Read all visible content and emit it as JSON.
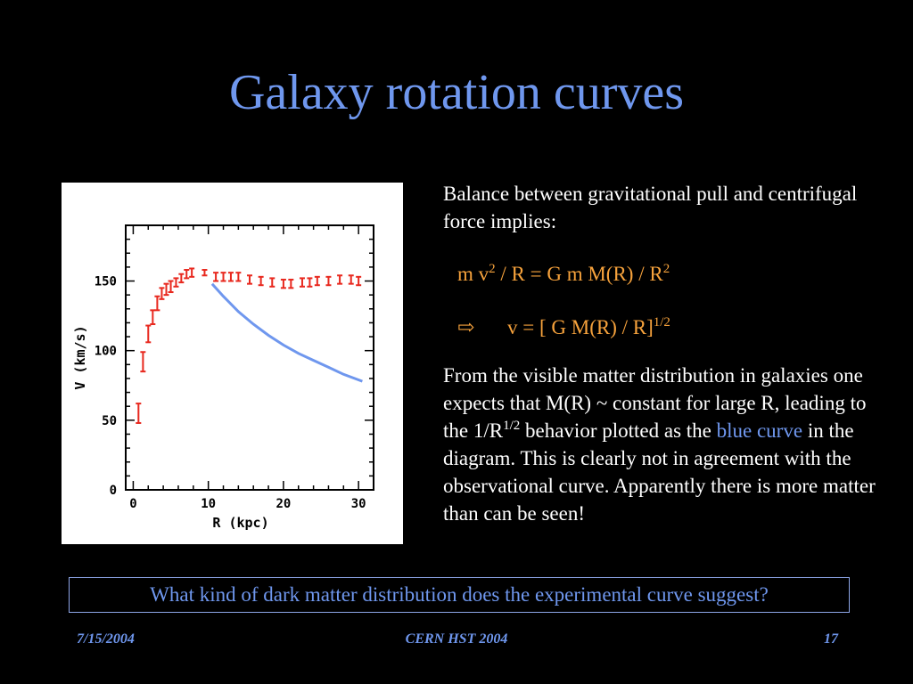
{
  "slide": {
    "title": "Galaxy rotation curves",
    "paragraph1": "Balance between gravitational pull and centrifugal force implies:",
    "eq1": {
      "lhs": "m v",
      "lhs_sup": "2",
      "rest": " / R = G m M(R) / R",
      "rest_sup": "2"
    },
    "eq2": {
      "arrow": "⇨",
      "text": "v = [ G M(R)  / R]",
      "sup": "1/2"
    },
    "paragraph2": {
      "part1": "From the visible matter distribution in galaxies one expects that M(R) ~ constant for large R, leading to the 1/R",
      "sup": "1/2",
      "part2": " behavior plotted as the ",
      "highlight": "blue curve",
      "part3": " in the diagram. This is clearly not in agreement with the observational curve. Apparently there is more matter than can be seen!"
    },
    "question": "What kind of dark matter distribution does the experimental curve suggest?",
    "footer": {
      "date": "7/15/2004",
      "center": "CERN HST 2004",
      "page": "17"
    }
  },
  "colors": {
    "background": "#000000",
    "title": "#6f97ee",
    "equation": "#f6a23c",
    "data_points": "#e8281e",
    "model_curve": "#6f97ee"
  },
  "chart_data": {
    "type": "scatter",
    "xlabel": "R (kpc)",
    "ylabel": "V (km/s)",
    "xlim": [
      -1,
      32
    ],
    "ylim": [
      0,
      190
    ],
    "x_ticks": [
      0,
      10,
      20,
      30
    ],
    "y_ticks": [
      0,
      50,
      100,
      150
    ],
    "series": [
      {
        "kind": "errorbar",
        "x": [
          0.7,
          1.3,
          2.0,
          2.6,
          3.2,
          3.8,
          4.4,
          5.0,
          5.7,
          6.4,
          7.1,
          7.8,
          9.5,
          11.0,
          12.0,
          13.0,
          14.0,
          15.5,
          17.0,
          18.5,
          20.0,
          21.0,
          22.5,
          23.5,
          24.5,
          26.0,
          27.5,
          29.0,
          30.0
        ],
        "y": [
          55,
          92,
          112,
          124,
          134,
          141,
          144,
          146,
          149,
          152,
          155,
          156,
          156,
          153,
          153,
          153,
          153,
          151,
          150,
          149,
          148,
          148,
          149,
          149,
          150,
          150,
          151,
          151,
          150
        ],
        "err": [
          7,
          7,
          6,
          5,
          5,
          4,
          4,
          4,
          3,
          3,
          3,
          3,
          2,
          3,
          3,
          3,
          3,
          3,
          3,
          3,
          3,
          3,
          3,
          3,
          3,
          3,
          3,
          3,
          3
        ]
      },
      {
        "kind": "line",
        "x": [
          10.5,
          12,
          14,
          16,
          18,
          20,
          22,
          24,
          26,
          28,
          30.5
        ],
        "y": [
          148,
          139,
          128,
          119,
          111,
          104,
          98,
          93,
          88,
          83,
          78
        ]
      }
    ]
  }
}
